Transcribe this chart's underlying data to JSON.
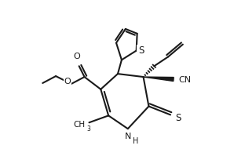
{
  "bg_color": "#ffffff",
  "line_color": "#1a1a1a",
  "lw": 1.5,
  "figsize": [
    2.98,
    2.04
  ],
  "dpi": 100,
  "xlim": [
    0,
    298
  ],
  "ylim": [
    0,
    204
  ]
}
